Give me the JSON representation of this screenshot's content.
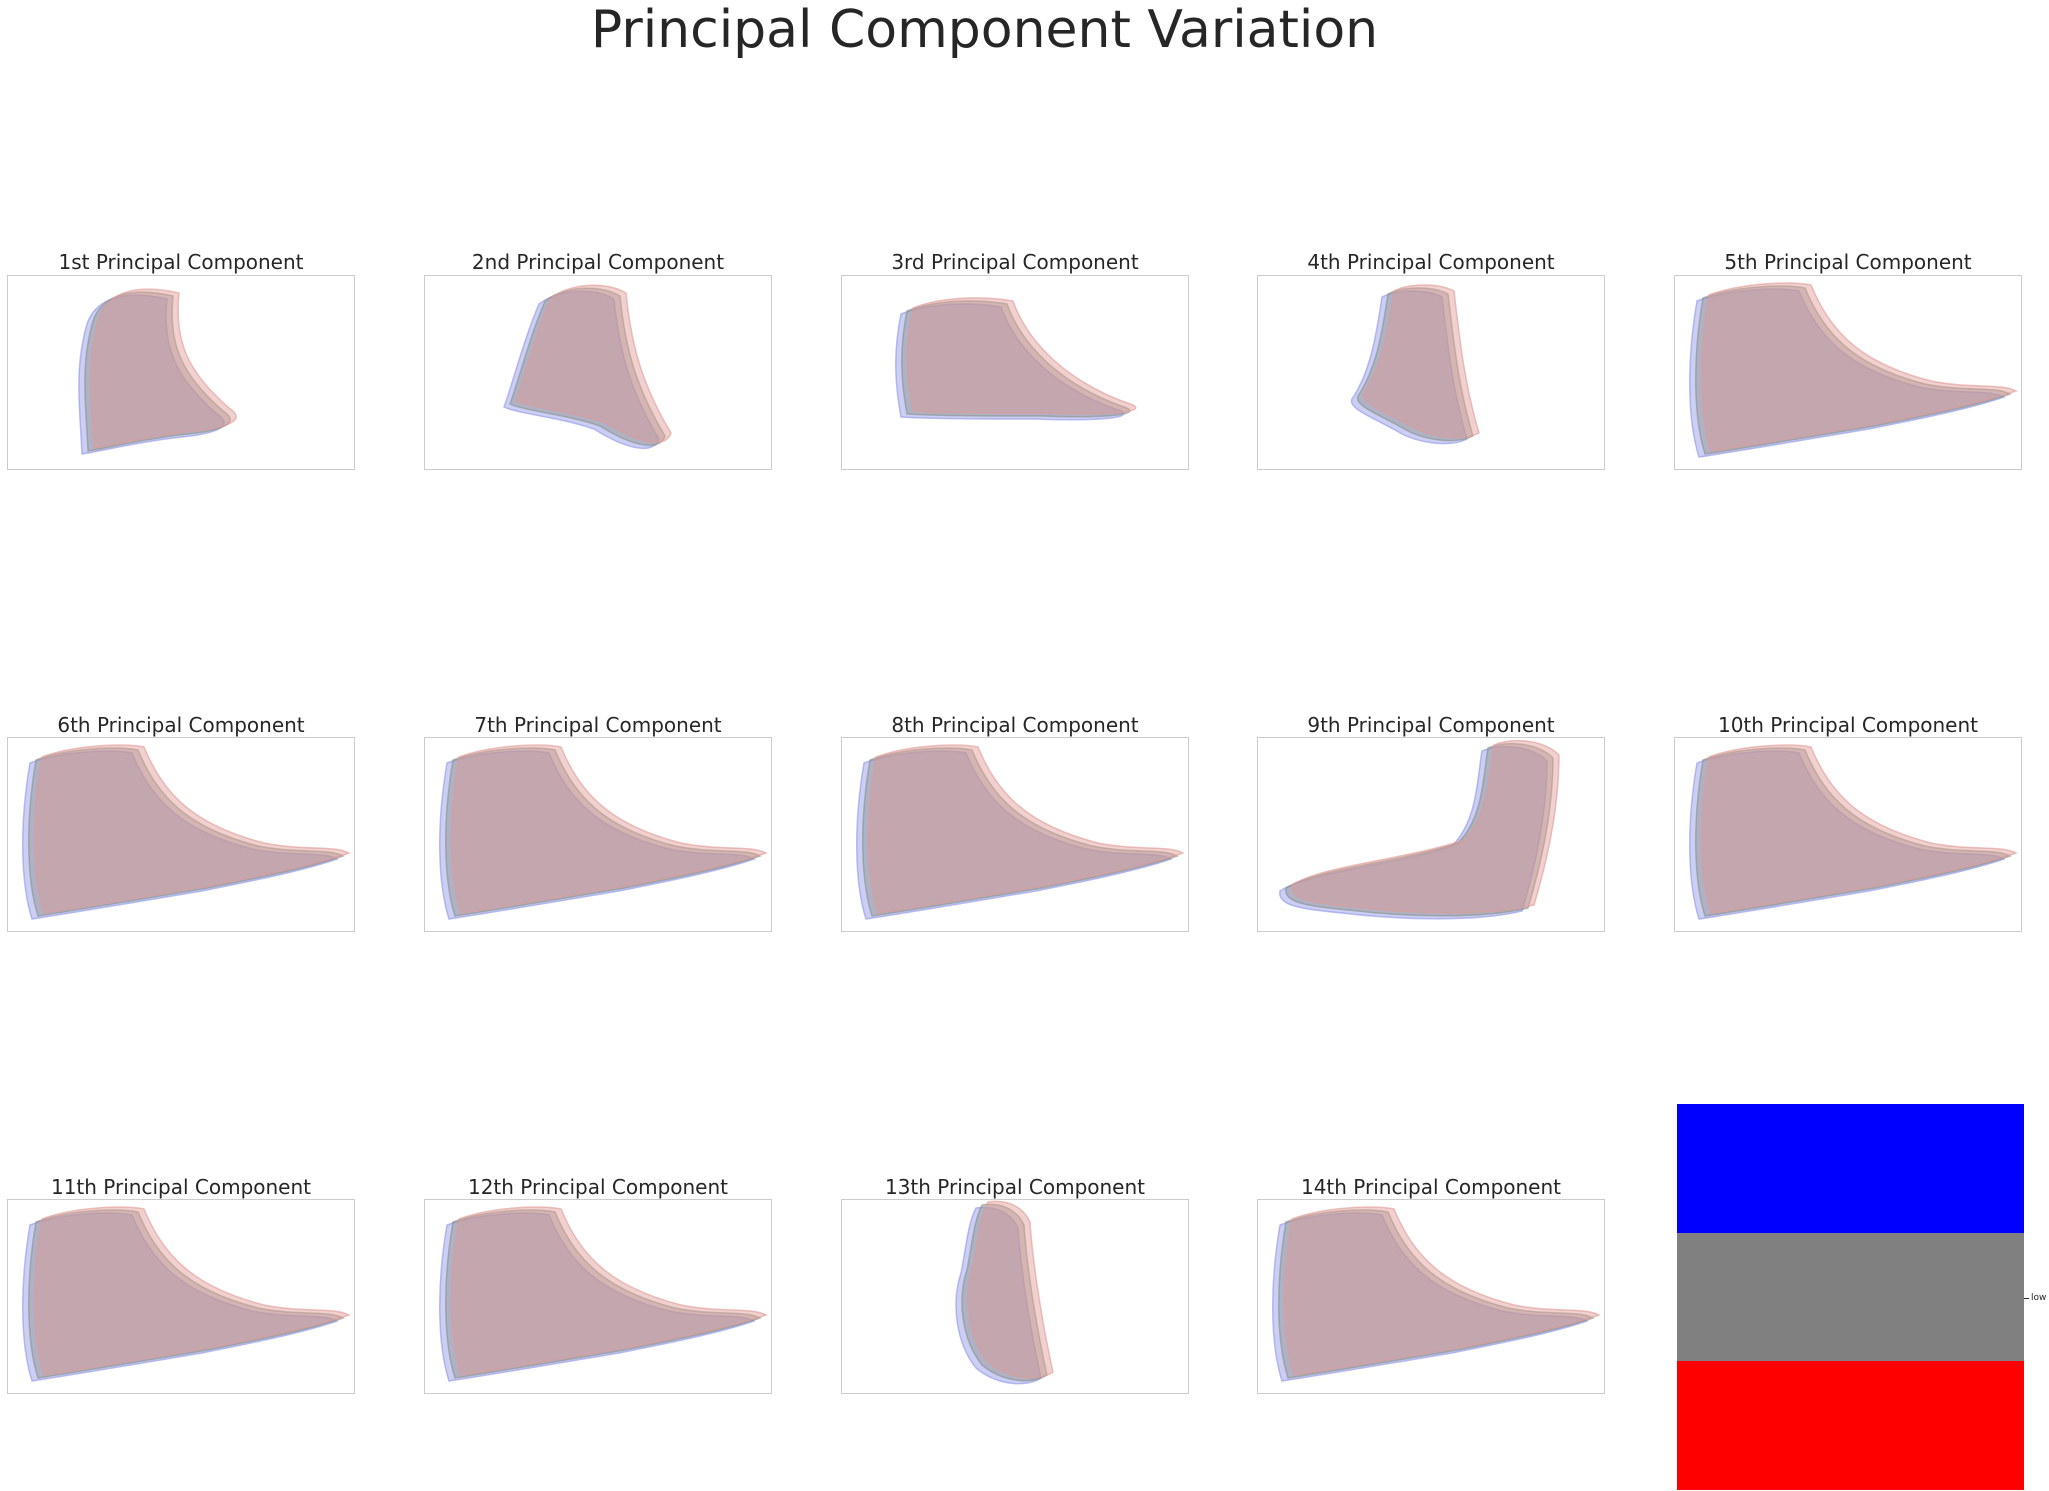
{
  "figure": {
    "title": "Principal Component Variation"
  },
  "panels": [
    {
      "title": "1st Principal Component",
      "pose": "ankle-tall-offset"
    },
    {
      "title": "2nd Principal Component",
      "pose": "tilted-upright"
    },
    {
      "title": "3rd Principal Component",
      "pose": "low-side"
    },
    {
      "title": "4th Principal Component",
      "pose": "narrow-upright"
    },
    {
      "title": "5th Principal Component",
      "pose": "full-side"
    },
    {
      "title": "6th Principal Component",
      "pose": "full-side"
    },
    {
      "title": "7th Principal Component",
      "pose": "full-side"
    },
    {
      "title": "8th Principal Component",
      "pose": "full-side"
    },
    {
      "title": "9th Principal Component",
      "pose": "mirrored"
    },
    {
      "title": "10th Principal Component",
      "pose": "full-side"
    },
    {
      "title": "11th Principal Component",
      "pose": "full-side"
    },
    {
      "title": "12th Principal Component",
      "pose": "full-side"
    },
    {
      "title": "13th Principal Component",
      "pose": "thin-upright"
    },
    {
      "title": "14th Principal Component",
      "pose": "full-side"
    }
  ],
  "colorbar": {
    "bands": [
      "#0000ff",
      "#808080",
      "#ff0000"
    ],
    "tick_label": "low"
  },
  "chart_data": {
    "type": "other",
    "title": "Principal Component Variation",
    "panel_titles": [
      "1st Principal Component",
      "2nd Principal Component",
      "3rd Principal Component",
      "4th Principal Component",
      "5th Principal Component",
      "6th Principal Component",
      "7th Principal Component",
      "8th Principal Component",
      "9th Principal Component",
      "10th Principal Component",
      "11th Principal Component",
      "12th Principal Component",
      "13th Principal Component",
      "14th Principal Component"
    ],
    "grid": "3x5",
    "overlay_colors": {
      "low": "#0000ff",
      "mean": "#808080",
      "high": "#ff0000"
    },
    "colorbar_ticks": [
      "low"
    ]
  },
  "colors": {
    "low": "#8f95e6",
    "mean": "#8a8f8a",
    "high": "#e09a95"
  }
}
